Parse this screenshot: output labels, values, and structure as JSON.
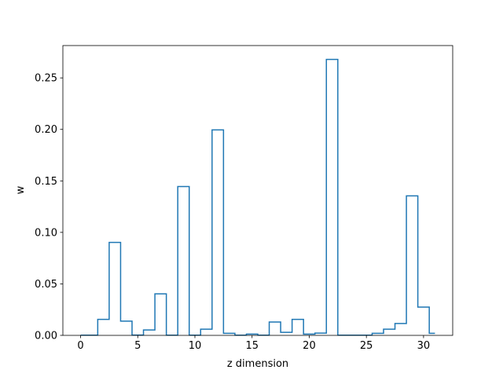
{
  "chart_data": {
    "type": "step",
    "title": "",
    "xlabel": "z dimension",
    "ylabel": "w",
    "xlim": [
      -1.55,
      32.55
    ],
    "ylim": [
      0,
      0.2814
    ],
    "xticks": [
      0,
      5,
      10,
      15,
      20,
      25,
      30
    ],
    "yticks": [
      0.0,
      0.05,
      0.1,
      0.15,
      0.2,
      0.25
    ],
    "xtick_labels": [
      "0",
      "5",
      "10",
      "15",
      "20",
      "25",
      "30"
    ],
    "ytick_labels": [
      "0.00",
      "0.05",
      "0.10",
      "0.15",
      "0.20",
      "0.25"
    ],
    "step_where": "mid",
    "grid": false,
    "line_color": "#1f77b4",
    "x": [
      0,
      1,
      2,
      3,
      4,
      5,
      6,
      7,
      8,
      9,
      10,
      11,
      12,
      13,
      14,
      15,
      16,
      17,
      18,
      19,
      20,
      21,
      22,
      23,
      24,
      25,
      26,
      27,
      28,
      29,
      30,
      31
    ],
    "values": [
      0.0002,
      0.0002,
      0.0155,
      0.0903,
      0.0138,
      0.0003,
      0.0052,
      0.0403,
      0.0002,
      0.1445,
      0.0002,
      0.006,
      0.1995,
      0.002,
      0.0002,
      0.0012,
      0.0002,
      0.013,
      0.003,
      0.0155,
      0.0012,
      0.0022,
      0.268,
      0.0002,
      0.0002,
      0.0002,
      0.002,
      0.006,
      0.0115,
      0.1355,
      0.0275,
      0.002
    ]
  }
}
